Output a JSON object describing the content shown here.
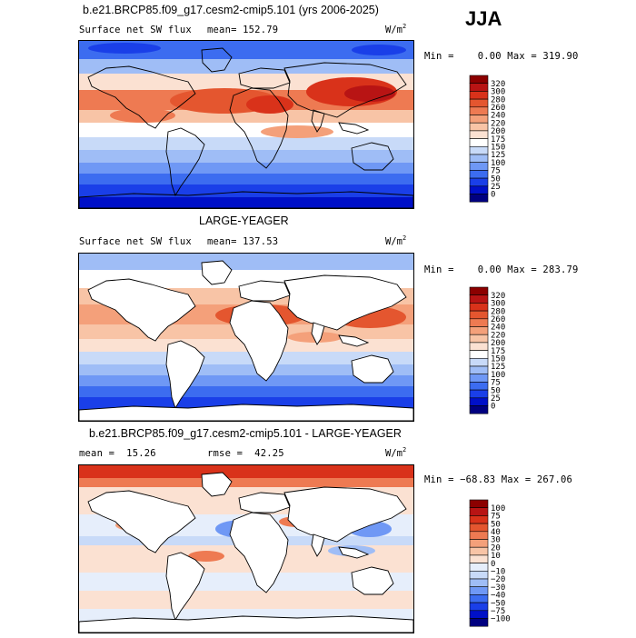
{
  "season": "JJA",
  "chart_data": [
    {
      "type": "heatmap",
      "title": "b.e21.BRCP85.f09_g17.cesm2-cmip5.101 (yrs 2006-2025)",
      "field": "Surface net SW flux",
      "stat_text": "mean= 152.79",
      "mean": 152.79,
      "units": "W/m",
      "units_exp": "2",
      "minmax_text": "Min =    0.00 Max = 319.90",
      "min": 0.0,
      "max": 319.9,
      "levels": [
        "320",
        "300",
        "280",
        "260",
        "240",
        "220",
        "200",
        "175",
        "150",
        "125",
        "100",
        "75",
        "50",
        "25",
        "0"
      ]
    },
    {
      "type": "heatmap",
      "title": "LARGE-YEAGER",
      "field": "Surface net SW flux",
      "stat_text": "mean= 137.53",
      "mean": 137.53,
      "units": "W/m",
      "units_exp": "2",
      "minmax_text": "Min =    0.00 Max = 283.79",
      "min": 0.0,
      "max": 283.79,
      "levels": [
        "320",
        "300",
        "280",
        "260",
        "240",
        "220",
        "200",
        "175",
        "150",
        "125",
        "100",
        "75",
        "50",
        "25",
        "0"
      ]
    },
    {
      "type": "heatmap",
      "title": "b.e21.BRCP85.f09_g17.cesm2-cmip5.101 - LARGE-YEAGER",
      "stat_text": "mean =  15.26",
      "mean": 15.26,
      "rmse_text": "rmse =  42.25",
      "rmse": 42.25,
      "units": "W/m",
      "units_exp": "2",
      "minmax_text": "Min = −68.83 Max = 267.06",
      "min": -68.83,
      "max": 267.06,
      "levels": [
        "100",
        "75",
        "50",
        "40",
        "30",
        "20",
        "10",
        "0",
        "−10",
        "−20",
        "−30",
        "−40",
        "−50",
        "−75",
        "−100"
      ]
    }
  ],
  "palettes": {
    "abs": [
      "#000080",
      "#0010c8",
      "#1a3fe8",
      "#3c6cf0",
      "#6f98f5",
      "#9fbdf6",
      "#c8daf8",
      "#ffffff",
      "#fbe1d2",
      "#f8c4a6",
      "#f4a07a",
      "#ee7a52",
      "#e4562f",
      "#d9321a",
      "#b81414",
      "#8c0000"
    ],
    "diff": [
      "#000080",
      "#0010c8",
      "#1a3fe8",
      "#3c6cf0",
      "#6f98f5",
      "#9fbdf6",
      "#c8daf8",
      "#e6eefb",
      "#fbe1d2",
      "#f8c4a6",
      "#f4a07a",
      "#ee7a52",
      "#e4562f",
      "#d9321a",
      "#b81414",
      "#8c0000"
    ]
  }
}
